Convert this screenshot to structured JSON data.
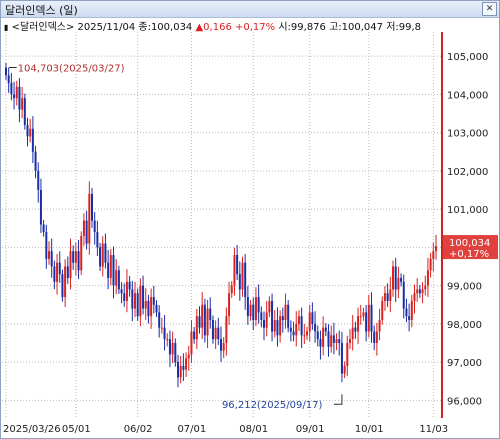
{
  "window": {
    "title": "달러인덱스 (일)",
    "pin_glyph": "✕"
  },
  "infobar": {
    "marker": "▮",
    "instrument": "<달러인덱스>",
    "date": "2025/11/04",
    "close_label": "종:100,034",
    "change": "▲0,166",
    "change_pct": "+0,17%",
    "high_open_text": "시:99,876",
    "high_text": "고:100,047",
    "low_text": "저:99,8"
  },
  "colors": {
    "up": "#d8221f",
    "down": "#1a2ea6",
    "axis_line": "#d02020",
    "badge": "#e0413c",
    "grid": "#b9b9b9"
  },
  "chart_data": {
    "type": "candlestick",
    "title": "달러인덱스 (일)",
    "ylim": [
      95.8,
      105.5
    ],
    "yticks": [
      96,
      97,
      98,
      99,
      100,
      101,
      102,
      103,
      104,
      105
    ],
    "ytick_labels": [
      "96,000",
      "97,000",
      "98,000",
      "99,000",
      "100,000",
      "101,000",
      "102,000",
      "103,000",
      "104,000",
      "105,000"
    ],
    "x_labels": [
      {
        "label": "2025/03/26",
        "index": 0
      },
      {
        "label": "05/01",
        "index": 26
      },
      {
        "label": "06/02",
        "index": 49
      },
      {
        "label": "07/01",
        "index": 69
      },
      {
        "label": "08/01",
        "index": 92
      },
      {
        "label": "09/01",
        "index": 113
      },
      {
        "label": "10/01",
        "index": 135
      },
      {
        "label": "11/03",
        "index": 159
      }
    ],
    "annotations": {
      "high": {
        "text": "104,703(2025/03/27)",
        "value": 104.703,
        "index": 1
      },
      "low": {
        "text": "96,212(2025/09/17)",
        "value": 96.212,
        "index": 125
      }
    },
    "last": {
      "price": "100,034",
      "change": "+0,17%",
      "value": 100.034
    },
    "closes": [
      104.5,
      104.3,
      104.0,
      103.9,
      104.2,
      103.6,
      103.9,
      103.2,
      102.9,
      103.1,
      102.5,
      102.0,
      101.5,
      100.6,
      100.4,
      99.7,
      99.9,
      99.5,
      99.1,
      99.6,
      99.3,
      98.7,
      99.5,
      99.2,
      99.9,
      99.6,
      99.9,
      99.4,
      100.3,
      100.7,
      100.1,
      101.4,
      100.7,
      100.4,
      100.0,
      99.5,
      100.1,
      99.6,
      99.2,
      99.8,
      99.0,
      99.4,
      98.9,
      98.8,
      98.6,
      99.1,
      98.9,
      98.4,
      98.8,
      98.2,
      99.0,
      98.4,
      98.6,
      98.2,
      98.7,
      98.5,
      98.3,
      97.9,
      97.9,
      97.6,
      97.6,
      97.2,
      97.5,
      97.0,
      96.6,
      96.9,
      96.8,
      97.1,
      97.2,
      97.8,
      97.6,
      98.2,
      97.9,
      98.5,
      97.7,
      98.4,
      98.1,
      97.6,
      97.9,
      97.6,
      97.3,
      97.5,
      98.2,
      98.8,
      99.0,
      99.8,
      99.3,
      98.9,
      99.6,
      98.7,
      98.2,
      98.5,
      98.1,
      98.7,
      98.3,
      98.1,
      97.9,
      98.3,
      98.6,
      97.8,
      98.1,
      97.7,
      98.2,
      98.1,
      98.5,
      97.9,
      97.8,
      97.7,
      98.0,
      98.2,
      97.7,
      97.7,
      97.8,
      98.3,
      98.0,
      97.8,
      97.6,
      97.4,
      97.9,
      97.8,
      97.4,
      97.7,
      97.5,
      97.6,
      97.5,
      96.7,
      96.9,
      97.5,
      97.6,
      97.9,
      97.8,
      98.2,
      98.2,
      98.3,
      97.8,
      98.5,
      97.8,
      97.5,
      97.8,
      98.1,
      98.6,
      98.8,
      98.6,
      98.9,
      99.5,
      98.9,
      99.2,
      99.1,
      98.4,
      98.2,
      98.1,
      98.6,
      98.8,
      98.9,
      98.8,
      98.9,
      99.0,
      99.4,
      99.7,
      99.9,
      100.03
    ]
  }
}
